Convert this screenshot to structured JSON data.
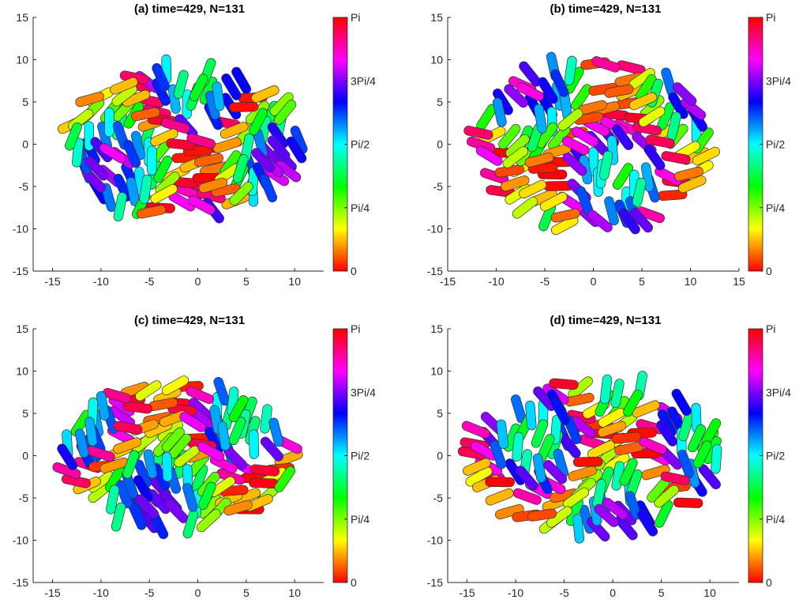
{
  "chart_data": [
    {
      "type": "scatter",
      "title": "(a) time=429, N=131",
      "xticks": [
        -15,
        -10,
        -5,
        0,
        5,
        10
      ],
      "yticks": [
        -15,
        -10,
        -5,
        0,
        5,
        10,
        15
      ],
      "xlim": [
        -17,
        13
      ],
      "ylim": [
        -15,
        15
      ],
      "colorbar": {
        "ticks": [
          "0",
          "Pi/4",
          "Pi/2",
          "3Pi/4",
          "Pi"
        ],
        "range": [
          0,
          3.1416
        ]
      },
      "cell_length": 3.0,
      "colony_center": [
        -1.5,
        0
      ],
      "colony_radius": [
        12,
        9
      ],
      "seed": 11
    },
    {
      "type": "scatter",
      "title": "(b) time=429, N=131",
      "xticks": [
        -15,
        -10,
        -5,
        0,
        5,
        10,
        15
      ],
      "yticks": [
        -15,
        -10,
        -5,
        0,
        5,
        10,
        15
      ],
      "xlim": [
        -15,
        15
      ],
      "ylim": [
        -15,
        15
      ],
      "colorbar": {
        "ticks": [
          "0",
          "Pi/4",
          "Pi/2",
          "3Pi/4",
          "Pi"
        ],
        "range": [
          0,
          3.1416
        ]
      },
      "cell_length": 3.0,
      "colony_center": [
        0,
        0
      ],
      "colony_radius": [
        12,
        10
      ],
      "seed": 29
    },
    {
      "type": "scatter",
      "title": "(c) time=429, N=131",
      "xticks": [
        -15,
        -10,
        -5,
        0,
        5,
        10
      ],
      "yticks": [
        -15,
        -10,
        -5,
        0,
        5,
        10,
        15
      ],
      "xlim": [
        -17,
        13
      ],
      "ylim": [
        -15,
        15
      ],
      "colorbar": {
        "ticks": [
          "0",
          "Pi/4",
          "Pi/2",
          "3Pi/4",
          "Pi"
        ],
        "range": [
          0,
          3.1416
        ]
      },
      "cell_length": 3.0,
      "colony_center": [
        -2,
        0
      ],
      "colony_radius": [
        12,
        8.5
      ],
      "seed": 47
    },
    {
      "type": "scatter",
      "title": "(d) time=429, N=131",
      "xticks": [
        -15,
        -10,
        -5,
        0,
        5,
        10
      ],
      "yticks": [
        -15,
        -10,
        -5,
        0,
        5,
        10,
        15
      ],
      "xlim": [
        -17,
        13
      ],
      "ylim": [
        -15,
        15
      ],
      "colorbar": {
        "ticks": [
          "0",
          "Pi/4",
          "Pi/2",
          "3Pi/4",
          "Pi"
        ],
        "range": [
          0,
          3.1416
        ]
      },
      "cell_length": 3.0,
      "colony_center": [
        -2,
        0
      ],
      "colony_radius": [
        13,
        9
      ],
      "seed": 83
    }
  ]
}
